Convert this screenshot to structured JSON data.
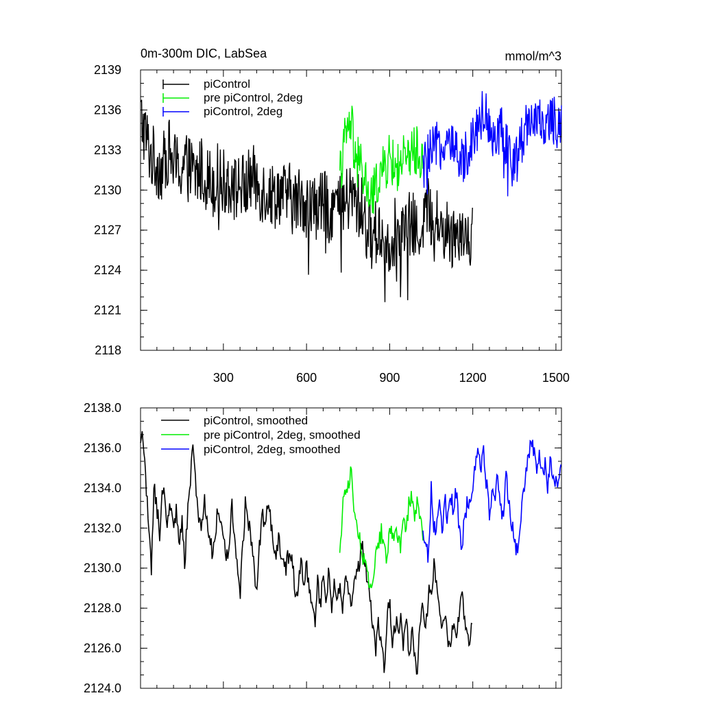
{
  "chart_data": [
    {
      "type": "line",
      "title": "0m-300m DIC, LabSea",
      "units": "mmol/m^3",
      "xlim": [
        1,
        1520
      ],
      "ylim": [
        2118,
        2139
      ],
      "xticks": [
        300,
        600,
        900,
        1200,
        1500
      ],
      "xtick_labels": [
        "300",
        "600",
        "900",
        "1200",
        "1500"
      ],
      "yticks": [
        2118,
        2121,
        2124,
        2127,
        2130,
        2133,
        2136,
        2139
      ],
      "ytick_labels": [
        "2118",
        "2121",
        "2124",
        "2127",
        "2130",
        "2133",
        "2136",
        "2139"
      ],
      "legend_position": "top-left",
      "series": [
        {
          "name": "piControl",
          "color": "#000000",
          "x": [
            1,
            20,
            40,
            60,
            80,
            100,
            120,
            140,
            160,
            180,
            200,
            220,
            240,
            260,
            280,
            300,
            320,
            340,
            360,
            380,
            400,
            420,
            440,
            460,
            480,
            500,
            520,
            540,
            560,
            580,
            600,
            620,
            640,
            660,
            680,
            700,
            720,
            740,
            760,
            780,
            800,
            820,
            840,
            860,
            880,
            900,
            920,
            940,
            960,
            980,
            1000,
            1020,
            1040,
            1060,
            1080,
            1100,
            1120,
            1140,
            1160,
            1180,
            1200
          ],
          "y": [
            2135.5,
            2134.0,
            2132.5,
            2132.0,
            2131.5,
            2133.0,
            2132.0,
            2131.5,
            2132.0,
            2131.5,
            2131.0,
            2131.5,
            2131.0,
            2130.5,
            2131.0,
            2130.5,
            2131.0,
            2130.0,
            2130.5,
            2130.0,
            2131.0,
            2130.5,
            2130.0,
            2130.0,
            2129.5,
            2130.0,
            2129.5,
            2129.5,
            2129.0,
            2129.5,
            2129.0,
            2128.5,
            2129.0,
            2129.0,
            2128.5,
            2129.0,
            2128.5,
            2129.0,
            2129.5,
            2129.0,
            2128.5,
            2127.0,
            2126.5,
            2127.0,
            2126.5,
            2126.0,
            2127.0,
            2126.5,
            2127.0,
            2127.5,
            2126.5,
            2128.0,
            2128.5,
            2128.0,
            2127.5,
            2127.0,
            2126.5,
            2127.0,
            2127.5,
            2126.5,
            2127.0
          ]
        },
        {
          "name": "pre piControl, 2deg",
          "color": "#00ee00",
          "x": [
            720,
            740,
            760,
            780,
            800,
            820,
            840,
            860,
            880,
            900,
            920,
            940,
            960,
            980,
            1000,
            1020
          ],
          "y": [
            2131.0,
            2134.0,
            2135.0,
            2132.5,
            2131.5,
            2130.0,
            2129.5,
            2131.0,
            2131.5,
            2132.5,
            2131.5,
            2132.0,
            2132.5,
            2133.0,
            2133.0,
            2132.0
          ]
        },
        {
          "name": "piControl, 2deg",
          "color": "#0000ff",
          "x": [
            1020,
            1040,
            1060,
            1080,
            1100,
            1120,
            1140,
            1160,
            1180,
            1200,
            1220,
            1240,
            1260,
            1280,
            1300,
            1320,
            1340,
            1360,
            1380,
            1400,
            1420,
            1440,
            1460,
            1480,
            1500,
            1520
          ],
          "y": [
            2131.5,
            2132.5,
            2133.0,
            2133.5,
            2133.0,
            2133.5,
            2132.5,
            2132.0,
            2133.0,
            2134.0,
            2135.0,
            2136.0,
            2135.0,
            2134.0,
            2134.5,
            2133.5,
            2132.0,
            2132.5,
            2134.0,
            2135.5,
            2135.5,
            2135.0,
            2134.5,
            2135.5,
            2135.0,
            2135.5
          ]
        }
      ]
    },
    {
      "type": "line",
      "xlim": [
        1,
        1520
      ],
      "ylim": [
        2124,
        2138
      ],
      "xticks": [
        300,
        600,
        900,
        1200,
        1500
      ],
      "yticks": [
        2124,
        2126,
        2128,
        2130,
        2132,
        2134,
        2136,
        2138
      ],
      "ytick_labels": [
        "2124.0",
        "2126.0",
        "2128.0",
        "2130.0",
        "2132.0",
        "2134.0",
        "2136.0",
        "2138.0"
      ],
      "legend_position": "top-left",
      "series": [
        {
          "name": "piControl, smoothed",
          "color": "#000000",
          "x": [
            1,
            10,
            20,
            30,
            40,
            50,
            60,
            70,
            80,
            90,
            100,
            110,
            120,
            130,
            140,
            150,
            160,
            170,
            180,
            190,
            200,
            210,
            220,
            230,
            240,
            250,
            260,
            270,
            280,
            290,
            300,
            310,
            320,
            330,
            340,
            350,
            360,
            370,
            380,
            390,
            400,
            410,
            420,
            430,
            440,
            450,
            460,
            470,
            480,
            490,
            500,
            510,
            520,
            530,
            540,
            550,
            560,
            570,
            580,
            590,
            600,
            610,
            620,
            630,
            640,
            650,
            660,
            670,
            680,
            690,
            700,
            710,
            720,
            730,
            740,
            750,
            760,
            770,
            780,
            790,
            800,
            810,
            820,
            830,
            840,
            850,
            860,
            870,
            880,
            890,
            900,
            910,
            920,
            930,
            940,
            950,
            960,
            970,
            980,
            990,
            1000,
            1010,
            1020,
            1030,
            1040,
            1050,
            1060,
            1070,
            1080,
            1090,
            1100,
            1110,
            1120,
            1130,
            1140,
            1150,
            1160,
            1170,
            1180,
            1190,
            1200
          ],
          "y": [
            2136.3,
            2136.6,
            2134.5,
            2132.0,
            2130.0,
            2134.2,
            2133.0,
            2131.8,
            2134.0,
            2133.2,
            2132.2,
            2133.5,
            2131.6,
            2133.0,
            2131.2,
            2132.5,
            2130.2,
            2132.6,
            2134.2,
            2136.0,
            2134.4,
            2132.6,
            2131.8,
            2133.5,
            2132.3,
            2131.6,
            2130.6,
            2131.2,
            2133.1,
            2132.2,
            2131.6,
            2130.3,
            2131.3,
            2133.4,
            2131.6,
            2130.4,
            2128.6,
            2131.2,
            2133.4,
            2132.2,
            2131.5,
            2130.4,
            2128.4,
            2131.0,
            2132.6,
            2132.5,
            2133.4,
            2132.3,
            2131.2,
            2130.6,
            2131.6,
            2130.4,
            2129.8,
            2130.2,
            2131.2,
            2130.2,
            2128.3,
            2128.9,
            2130.4,
            2129.3,
            2130.0,
            2129.2,
            2128.4,
            2127.3,
            2129.4,
            2128.1,
            2129.6,
            2128.4,
            2129.8,
            2127.6,
            2129.2,
            2128.2,
            2129.4,
            2127.9,
            2130.1,
            2129.3,
            2128.3,
            2129.4,
            2129.6,
            2130.1,
            2131.3,
            2130.3,
            2129.4,
            2128.2,
            2127.0,
            2126.0,
            2127.3,
            2126.2,
            2125.0,
            2127.2,
            2128.6,
            2126.3,
            2127.3,
            2126.9,
            2127.6,
            2126.2,
            2127.6,
            2125.6,
            2126.9,
            2125.4,
            2124.6,
            2127.6,
            2128.0,
            2127.2,
            2128.6,
            2129.0,
            2130.0,
            2129.4,
            2128.3,
            2127.0,
            2127.4,
            2126.2,
            2125.8,
            2127.5,
            2126.0,
            2127.6,
            2128.9,
            2127.6,
            2126.8,
            2126.2,
            2127.4
          ]
        },
        {
          "name": "pre piControl, 2deg, smoothed",
          "color": "#00ee00",
          "x": [
            720,
            730,
            740,
            750,
            760,
            770,
            780,
            790,
            800,
            810,
            820,
            830,
            840,
            850,
            860,
            870,
            880,
            890,
            900,
            910,
            920,
            930,
            940,
            950,
            960,
            970,
            980,
            990,
            1000,
            1010,
            1020
          ],
          "y": [
            2130.8,
            2133.0,
            2133.6,
            2134.2,
            2135.0,
            2133.2,
            2132.4,
            2131.6,
            2131.0,
            2130.1,
            2129.6,
            2128.8,
            2129.4,
            2130.4,
            2131.2,
            2131.9,
            2131.2,
            2130.6,
            2132.2,
            2131.4,
            2132.3,
            2131.6,
            2131.0,
            2132.6,
            2132.0,
            2133.2,
            2133.6,
            2132.4,
            2133.4,
            2132.2,
            2131.7
          ]
        },
        {
          "name": "piControl, 2deg, smoothed",
          "color": "#0000ff",
          "x": [
            1020,
            1030,
            1040,
            1050,
            1060,
            1070,
            1080,
            1090,
            1100,
            1110,
            1120,
            1130,
            1140,
            1150,
            1160,
            1170,
            1180,
            1190,
            1200,
            1210,
            1220,
            1230,
            1240,
            1250,
            1260,
            1270,
            1280,
            1290,
            1300,
            1310,
            1320,
            1330,
            1340,
            1350,
            1360,
            1370,
            1380,
            1390,
            1400,
            1410,
            1420,
            1430,
            1440,
            1450,
            1460,
            1470,
            1480,
            1490,
            1500,
            1510,
            1520
          ],
          "y": [
            2131.9,
            2131.2,
            2130.3,
            2134.1,
            2131.9,
            2132.2,
            2133.0,
            2131.6,
            2133.4,
            2132.4,
            2133.6,
            2132.9,
            2133.8,
            2132.1,
            2131.2,
            2132.2,
            2133.5,
            2132.9,
            2134.0,
            2135.2,
            2136.0,
            2135.2,
            2135.9,
            2134.1,
            2132.8,
            2134.0,
            2133.6,
            2134.9,
            2133.0,
            2132.8,
            2134.5,
            2133.6,
            2132.2,
            2131.6,
            2130.8,
            2132.4,
            2133.4,
            2134.6,
            2135.4,
            2136.4,
            2135.8,
            2134.6,
            2135.7,
            2134.6,
            2135.2,
            2134.2,
            2135.6,
            2134.4,
            2134.2,
            2134.4,
            2135.6
          ]
        }
      ]
    }
  ]
}
